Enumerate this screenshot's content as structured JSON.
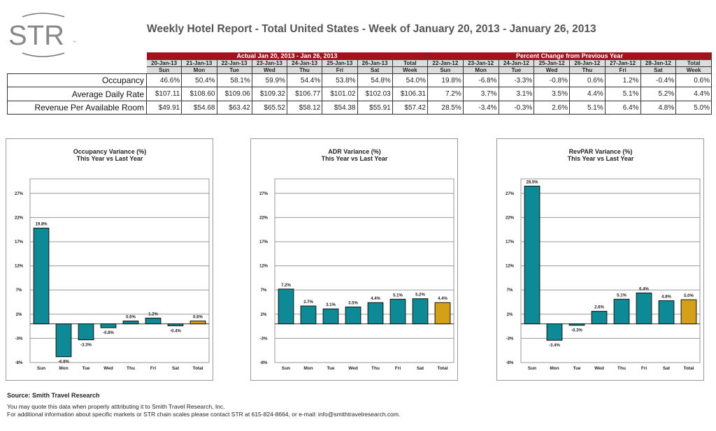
{
  "logo": {
    "text": "STR",
    "tm": "™"
  },
  "title": "Weekly Hotel Report - Total United States - Week of January 20, 2013 - January 26, 2013",
  "table": {
    "actual_header": "Actual Jan 20, 2013 - Jan 26, 2013",
    "change_header": "Percent Change from Previous Year",
    "actual_dates": [
      "20-Jan-13",
      "21-Jan-13",
      "22-Jan-13",
      "23-Jan-13",
      "24-Jan-13",
      "25-Jan-13",
      "26-Jan-13",
      "Total"
    ],
    "change_dates": [
      "22-Jan-12",
      "23-Jan-12",
      "24-Jan-12",
      "25-Jan-12",
      "26-Jan-12",
      "27-Jan-12",
      "28-Jan-12",
      "Total"
    ],
    "days": [
      "Sun",
      "Mon",
      "Tue",
      "Wed",
      "Thu",
      "Fri",
      "Sat",
      "Week"
    ],
    "rows": [
      {
        "label": "Occupancy",
        "actual": [
          "46.6%",
          "50.4%",
          "58.1%",
          "59.9%",
          "54.4%",
          "53.8%",
          "54.8%",
          "54.0%"
        ],
        "change": [
          "19.8%",
          "-6.8%",
          "-3.3%",
          "-0.8%",
          "0.6%",
          "1.2%",
          "-0.4%",
          "0.6%"
        ]
      },
      {
        "label": "Average Daily Rate",
        "actual": [
          "$107.11",
          "$108.60",
          "$109.06",
          "$109.32",
          "$106.77",
          "$101.02",
          "$102.03",
          "$106.31"
        ],
        "change": [
          "7.2%",
          "3.7%",
          "3.1%",
          "3.5%",
          "4.4%",
          "5.1%",
          "5.2%",
          "4.4%"
        ]
      },
      {
        "label": "Revenue Per Available Room",
        "actual": [
          "$49.91",
          "$54.68",
          "$63.42",
          "$65.52",
          "$58.12",
          "$54.38",
          "$55.91",
          "$57.42"
        ],
        "change": [
          "28.5%",
          "-3.4%",
          "-0.3%",
          "2.6%",
          "5.1%",
          "6.4%",
          "4.8%",
          "5.0%"
        ]
      }
    ]
  },
  "colors": {
    "header": "#a3111d",
    "bar": "#0e8a96",
    "total_bar": "#d4a017"
  },
  "chart_data": [
    {
      "type": "bar",
      "title": "Occupancy Variance (%)",
      "subtitle": "This Year vs Last Year",
      "categories": [
        "Sun",
        "Mon",
        "Tue",
        "Wed",
        "Thu",
        "Fri",
        "Sat",
        "Total"
      ],
      "values": [
        19.8,
        -6.8,
        -3.3,
        -0.8,
        0.6,
        1.2,
        -0.4,
        0.6
      ],
      "labels": [
        "19.8%",
        "-6.8%",
        "-3.3%",
        "-0.8%",
        "0.6%",
        "1.2%",
        "-0.4%",
        "0.6%"
      ],
      "yticks": [
        "27%",
        "22%",
        "17%",
        "12%",
        "7%",
        "2%",
        "-3%",
        "-8%"
      ],
      "ytick_values": [
        27,
        22,
        17,
        12,
        7,
        2,
        -3,
        -8
      ],
      "ylim": [
        -8,
        30
      ],
      "grid": true
    },
    {
      "type": "bar",
      "title": "ADR Variance (%)",
      "subtitle": "This Year vs Last Year",
      "categories": [
        "Sun",
        "Mon",
        "Tue",
        "Wed",
        "Thu",
        "Fri",
        "Sat",
        "Total"
      ],
      "values": [
        7.2,
        3.7,
        3.1,
        3.5,
        4.4,
        5.1,
        5.2,
        4.4
      ],
      "labels": [
        "7.2%",
        "3.7%",
        "3.1%",
        "3.5%",
        "4.4%",
        "5.1%",
        "5.2%",
        "4.4%"
      ],
      "yticks": [
        "27%",
        "22%",
        "17%",
        "12%",
        "7%",
        "2%",
        "-3%",
        "-8%"
      ],
      "ytick_values": [
        27,
        22,
        17,
        12,
        7,
        2,
        -3,
        -8
      ],
      "ylim": [
        -8,
        30
      ],
      "grid": true
    },
    {
      "type": "bar",
      "title": "RevPAR Variance (%)",
      "subtitle": "This Year vs Last Year",
      "categories": [
        "Sun",
        "Mon",
        "Tue",
        "Wed",
        "Thu",
        "Fri",
        "Sat",
        "Total"
      ],
      "values": [
        28.5,
        -3.4,
        -0.3,
        2.6,
        5.1,
        6.4,
        4.8,
        5.0
      ],
      "labels": [
        "28.5%",
        "-3.4%",
        "-0.3%",
        "2.6%",
        "5.1%",
        "6.4%",
        "4.8%",
        "5.0%"
      ],
      "yticks": [
        "27%",
        "22%",
        "17%",
        "12%",
        "7%",
        "2%",
        "-3%",
        "-8%"
      ],
      "ytick_values": [
        27,
        22,
        17,
        12,
        7,
        2,
        -3,
        -8
      ],
      "ylim": [
        -8,
        30
      ],
      "grid": true
    }
  ],
  "footer": {
    "source": "Source: Smith Travel Research",
    "line1": "You may quote this data when properly atttributing it to Smith Travel Research, Inc.",
    "line2": "For additional information about specific markets or STR chain scales please contact STR at 615-824-8664, or e-mail: info@smithtravelresearch.com."
  }
}
